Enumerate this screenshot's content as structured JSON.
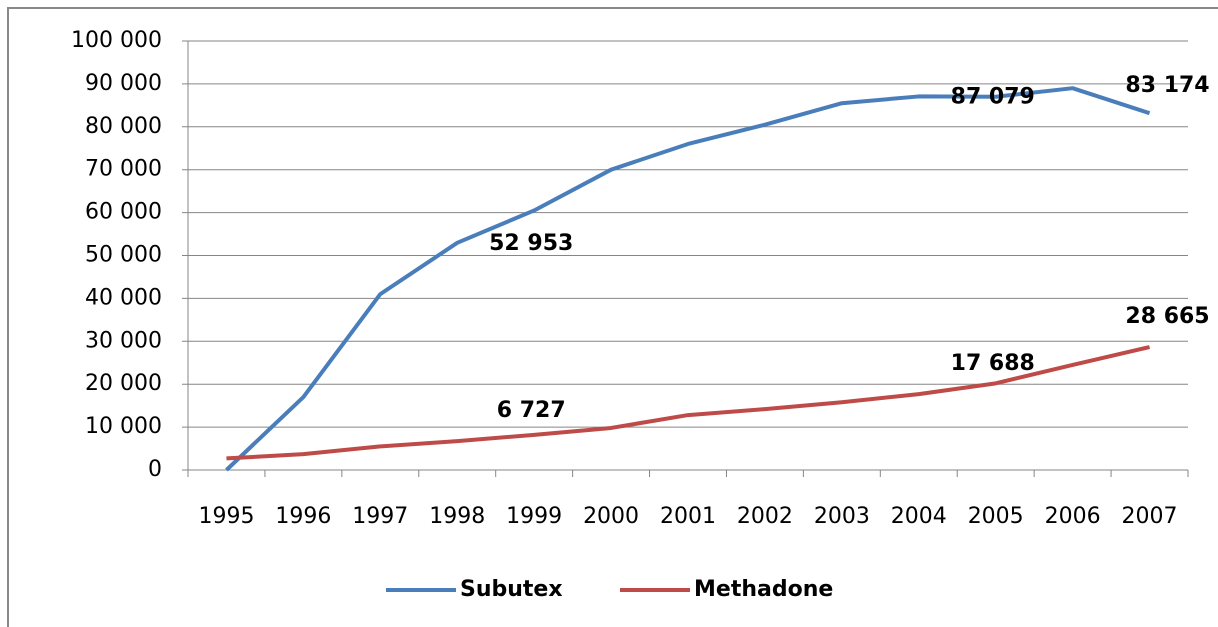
{
  "chart_data": {
    "type": "line",
    "categories": [
      "1995",
      "1996",
      "1997",
      "1998",
      "1999",
      "2000",
      "2001",
      "2002",
      "2003",
      "2004",
      "2005",
      "2006",
      "2007"
    ],
    "series": [
      {
        "name": "Subutex",
        "color": "#4a7ebb",
        "values": [
          0,
          17000,
          41000,
          52953,
          60500,
          70000,
          76000,
          80500,
          85500,
          87079,
          87000,
          89000,
          83174
        ],
        "value_labels": [
          null,
          null,
          null,
          "52 953",
          null,
          null,
          null,
          null,
          null,
          "87 079",
          null,
          null,
          "83 174"
        ]
      },
      {
        "name": "Methadone",
        "color": "#be4b48",
        "values": [
          2700,
          3700,
          5500,
          6727,
          8200,
          9800,
          12800,
          14200,
          15800,
          17688,
          20200,
          24500,
          28665
        ],
        "value_labels": [
          null,
          null,
          null,
          "6 727",
          null,
          null,
          null,
          null,
          null,
          "17 688",
          null,
          null,
          "28 665"
        ]
      }
    ],
    "ylim": [
      0,
      100000
    ],
    "yticks": [
      0,
      {
        "value": 10000,
        "label": "10 000"
      },
      {
        "value": 20000,
        "label": "20 000"
      },
      {
        "value": 30000,
        "label": "30 000"
      },
      {
        "value": 40000,
        "label": "40 000"
      },
      {
        "value": 50000,
        "label": "50 000"
      },
      {
        "value": 60000,
        "label": "60 000"
      },
      {
        "value": 70000,
        "label": "70 000"
      },
      {
        "value": 80000,
        "label": "80 000"
      },
      {
        "value": 90000,
        "label": "90 000"
      },
      {
        "value": 100000,
        "label": "100 000"
      }
    ],
    "grid": true,
    "legend": "bottom"
  }
}
